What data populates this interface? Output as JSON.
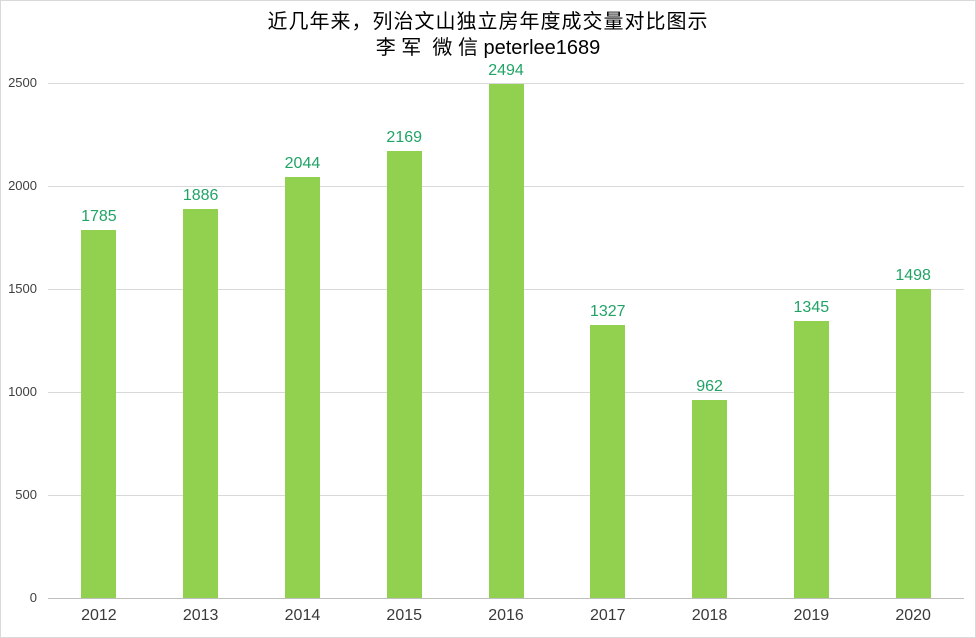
{
  "chart_data": {
    "type": "bar",
    "title": "近几年来，列治文山独立房年度成交量对比图示",
    "subtitle": "李 军  微 信 peterlee1689",
    "categories": [
      "2012",
      "2013",
      "2014",
      "2015",
      "2016",
      "2017",
      "2018",
      "2019",
      "2020"
    ],
    "values": [
      1785,
      1886,
      2044,
      2169,
      2494,
      1327,
      962,
      1345,
      1498
    ],
    "xlabel": "",
    "ylabel": "",
    "ylim": [
      0,
      2500
    ],
    "yticks": [
      0,
      500,
      1000,
      1500,
      2000,
      2500
    ],
    "grid": true,
    "legend": "none",
    "colors": {
      "bar": "#92d050",
      "value_label": "#21a366",
      "gridline": "#d9d9d9",
      "axis_line": "#bfbfbf",
      "axis_text": "#404040",
      "title_text": "#000000",
      "frame_border": "#d9d9d9",
      "background": "#ffffff"
    }
  }
}
